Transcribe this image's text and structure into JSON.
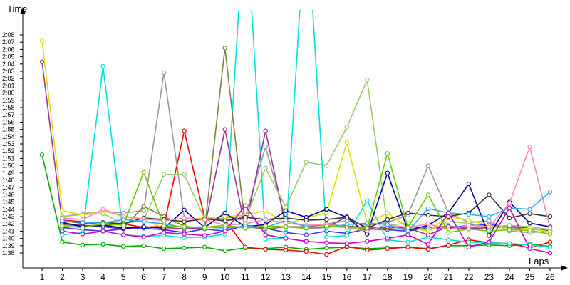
{
  "chart_data": {
    "type": "line",
    "ylabel": "Time",
    "xlabel": "Laps",
    "x": [
      1,
      2,
      3,
      4,
      5,
      6,
      7,
      8,
      9,
      10,
      11,
      12,
      13,
      14,
      15,
      16,
      17,
      18,
      19,
      20,
      21,
      22,
      23,
      24,
      25,
      26
    ],
    "x_tick_labels": [
      "1",
      "2",
      "3",
      "4",
      "5",
      "6",
      "7",
      "8",
      "9",
      "10",
      "11",
      "12",
      "13",
      "14",
      "15",
      "16",
      "17",
      "18",
      "19",
      "20",
      "21",
      "22",
      "23",
      "24",
      "25",
      "26"
    ],
    "ylim": [
      96.5,
      129
    ],
    "y_unit": "seconds (lap time m:ss)",
    "y_ticks": [
      98,
      99,
      100,
      101,
      102,
      103,
      104,
      105,
      106,
      107,
      108,
      109,
      110,
      111,
      112,
      113,
      114,
      115,
      116,
      117,
      118,
      119,
      120,
      121,
      122,
      123,
      124,
      125,
      126,
      127,
      128
    ],
    "y_tick_labels": [
      "1:38",
      "1:39",
      "1:40",
      "1:41",
      "1:42",
      "1:43",
      "1:44",
      "1:45",
      "1:46",
      "1:47",
      "1:48",
      "1:49",
      "1:50",
      "1:51",
      "1:52",
      "1:53",
      "1:54",
      "1:55",
      "1:56",
      "1:57",
      "1:58",
      "1:59",
      "2:00",
      "2:01",
      "2:02",
      "2:03",
      "2:04",
      "2:05",
      "2:06",
      "2:07",
      "2:08"
    ],
    "grid": false,
    "legend": "none",
    "series": [
      {
        "color": "#00b000",
        "values": [
          111.5,
          99.5,
          99.1,
          99.2,
          98.9,
          99.0,
          98.6,
          98.7,
          98.8,
          98.3,
          98.7,
          98.6,
          98.8,
          98.5,
          98.7,
          98.8,
          98.6,
          98.7,
          98.8,
          98.6,
          99.0,
          99.0,
          99.1,
          99.0,
          99.2,
          98.9
        ]
      },
      {
        "color": "#ff0000",
        "values": [
          null,
          102.5,
          102.3,
          101.8,
          102.0,
          101.5,
          101.7,
          114.8,
          102.8,
          102.5,
          98.8,
          98.5,
          98.4,
          98.2,
          97.8,
          98.9,
          98.4,
          98.6,
          98.8,
          98.5,
          99.1,
          99.8,
          99.4,
          99.3,
          98.7,
          99.5
        ]
      },
      {
        "color": "#3333ff",
        "values": [
          null,
          101.5,
          101.2,
          101.0,
          101.3,
          101.4,
          101.2,
          100.8,
          101.3,
          101.0,
          101.8,
          101.4,
          100.8,
          100.5,
          101.0,
          100.7,
          101.3,
          101.2,
          101.0,
          101.5,
          101.4,
          101.8,
          101.9,
          101.5,
          101.3,
          101.0
        ]
      },
      {
        "color": "#00e0e0",
        "values": [
          null,
          100.5,
          100.8,
          123.7,
          100.5,
          100.3,
          100.4,
          100.1,
          100.2,
          100.6,
          146.0,
          99.9,
          100.1,
          146.0,
          100.2,
          100.4,
          105.2,
          99.8,
          99.5,
          100.2,
          99.8,
          99.5,
          99.4,
          99.3,
          99.1,
          98.8
        ]
      },
      {
        "color": "#999999",
        "values": [
          null,
          103.0,
          103.4,
          103.7,
          103.5,
          103.8,
          122.8,
          102.8,
          102.5,
          102.8,
          103.0,
          112.6,
          102.5,
          101.6,
          102.0,
          102.4,
          101.8,
          102.2,
          103.2,
          110.0,
          103.5,
          102.2,
          102.4,
          101.0,
          100.8,
          101.0
        ]
      },
      {
        "color": "#808040",
        "values": [
          null,
          101.9,
          101.7,
          101.9,
          101.4,
          104.4,
          103.0,
          101.7,
          101.3,
          126.2,
          101.6,
          101.3,
          101.6,
          101.6,
          101.9,
          101.7,
          101.5,
          101.4,
          101.6,
          101.5,
          101.7,
          101.4,
          101.8,
          101.5,
          101.3,
          101.1
        ]
      },
      {
        "color": "#993399",
        "values": [
          124.3,
          102.0,
          101.8,
          101.6,
          101.3,
          101.6,
          101.5,
          101.3,
          101.5,
          115.0,
          101.4,
          114.8,
          101.6,
          101.4,
          101.5,
          103.0,
          101.3,
          101.6,
          101.4,
          100.5,
          101.6,
          101.3,
          101.5,
          101.7,
          101.4,
          101.0
        ]
      },
      {
        "color": "#99cc66",
        "values": [
          null,
          103.0,
          103.3,
          103.4,
          102.0,
          102.5,
          108.8,
          108.8,
          102.7,
          102.5,
          102.6,
          109.7,
          104.3,
          110.5,
          110.0,
          115.3,
          121.8,
          101.8,
          102.1,
          101.0,
          102.3,
          102.1,
          101.5,
          101.8,
          101.6,
          101.2
        ]
      },
      {
        "color": "#e0e000",
        "values": [
          127.2,
          103.8,
          103.2,
          103.8,
          103.0,
          102.6,
          101.4,
          102.6,
          102.8,
          103.0,
          103.2,
          103.8,
          102.0,
          102.8,
          103.5,
          113.2,
          102.0,
          103.5,
          101.5,
          101.0,
          103.0,
          102.5,
          101.8,
          101.2,
          101.4,
          100.9
        ]
      },
      {
        "color": "#000099",
        "values": [
          null,
          102.2,
          101.6,
          101.8,
          101.4,
          101.6,
          101.4,
          103.9,
          101.5,
          103.5,
          101.6,
          101.9,
          103.8,
          102.9,
          104.0,
          102.9,
          100.6,
          109.0,
          101.1,
          101.8,
          103.5,
          107.5,
          100.4,
          105.0,
          102.1,
          101.6
        ]
      },
      {
        "color": "#333333",
        "values": [
          null,
          102.4,
          102.1,
          102.2,
          102.0,
          102.8,
          102.6,
          102.3,
          102.7,
          102.4,
          102.9,
          102.6,
          102.8,
          102.5,
          102.6,
          102.9,
          101.4,
          102.6,
          103.5,
          103.2,
          103.0,
          103.5,
          106.0,
          102.8,
          103.4,
          103.0
        ]
      },
      {
        "color": "#ff88bb",
        "values": [
          null,
          102.8,
          102.6,
          104.0,
          103.0,
          102.7,
          102.4,
          102.8,
          102.6,
          101.8,
          102.0,
          102.6,
          102.1,
          101.8,
          101.9,
          101.5,
          101.0,
          101.9,
          101.5,
          102.0,
          101.2,
          101.8,
          101.6,
          104.8,
          112.6,
          101.5
        ]
      },
      {
        "color": "#33aaff",
        "values": [
          null,
          102.4,
          102.2,
          102.1,
          102.6,
          102.3,
          102.0,
          101.5,
          101.6,
          101.4,
          101.7,
          101.5,
          102.5,
          101.6,
          101.5,
          101.9,
          102.1,
          101.9,
          101.0,
          104.1,
          103.5,
          103.3,
          103.0,
          104.2,
          104.0,
          106.4
        ]
      },
      {
        "color": "#cc00cc",
        "values": [
          null,
          101.0,
          100.6,
          101.0,
          100.5,
          100.2,
          100.8,
          100.6,
          100.4,
          101.0,
          104.5,
          100.5,
          100.0,
          99.6,
          99.4,
          99.3,
          99.6,
          100.0,
          100.5,
          99.2,
          103.5,
          98.8,
          99.5,
          104.2,
          98.6,
          98.0
        ]
      },
      {
        "color": "#66cc00",
        "values": [
          null,
          101.7,
          101.5,
          102.0,
          101.8,
          109.1,
          101.7,
          101.6,
          101.5,
          101.8,
          101.4,
          101.7,
          101.6,
          101.4,
          101.7,
          101.5,
          101.4,
          111.7,
          101.5,
          106.0,
          100.8,
          101.3,
          101.0,
          101.2,
          101.1,
          100.6
        ]
      }
    ]
  }
}
